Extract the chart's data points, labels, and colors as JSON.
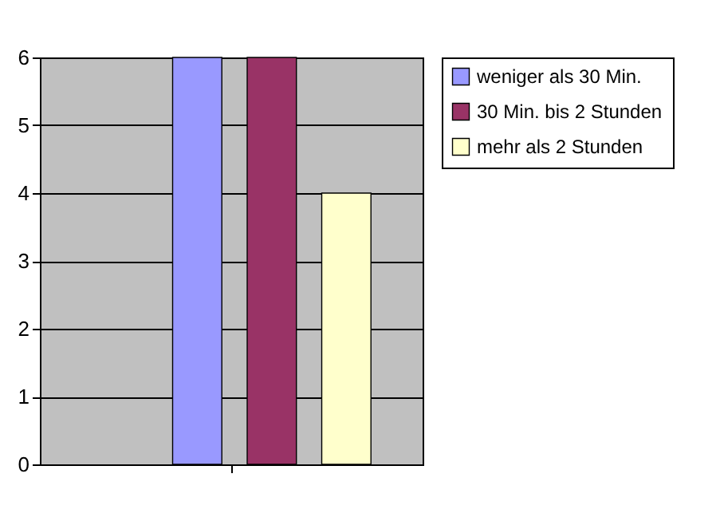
{
  "chart_data": {
    "type": "bar",
    "categories": [
      null
    ],
    "series": [
      {
        "name": "weniger als 30 Min.",
        "color": "#9999ff",
        "values": [
          6
        ]
      },
      {
        "name": "30 Min. bis 2 Stunden",
        "color": "#993366",
        "values": [
          6
        ]
      },
      {
        "name": "mehr als 2 Stunden",
        "color": "#ffffcc",
        "values": [
          4
        ]
      }
    ],
    "ylim": [
      0,
      6
    ],
    "yticks": [
      0,
      1,
      2,
      3,
      4,
      5,
      6
    ],
    "grid": "y",
    "legend": "right"
  }
}
